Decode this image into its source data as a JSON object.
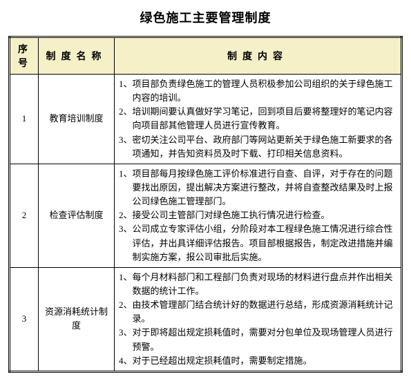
{
  "title": "绿色施工主要管理制度",
  "columns": {
    "num": "序号",
    "name": "制度名称",
    "content": "制度内容"
  },
  "rows": [
    {
      "num": "1",
      "name": "教育培训制度",
      "items": [
        "项目部负责绿色施工的管理人员积极参加公司组织的关于绿色施工内容的培训。",
        "培训期间要认真做好学习笔记，回到项目后要将整理好的笔记内容向项目部其他管理人员进行宣传教育。",
        "密切关注公司平台、政府部门等网站更新关于绿色施工新要求的各项通知，并告知资料员及时下载、打印相关信息资料。"
      ]
    },
    {
      "num": "2",
      "name": "检查评估制度",
      "items": [
        "项目部每月按绿色施工评价标准进行自查、自评，对于存在的问题要找出原因，提出解决方案进行整改，并将自查整改结果及时上报公司绿色施工管理部门。",
        "接受公司主管部门对绿色施工执行情况进行检查。",
        "公司成立专家评估小组，分阶段对本工程绿色施工情况进行综合性评估，并出具详细评估报告。项目部根据报告，制定改进措施并编制实施方案，报公司审批后实施。"
      ]
    },
    {
      "num": "3",
      "name": "资源消耗统计制度",
      "items": [
        "每个月材料部门和工程部门负责对现场的材料进行盘点并作出相关数据的统计工作。",
        "由技术管理部门结合统计好的数据进行总结，形成资源消耗统计记录。",
        "对于即将超出规定损耗值时，需要对分包单位及现场管理人员进行预警。",
        "对于已经超出规定损耗值时，需要制定措施。"
      ]
    }
  ],
  "style": {
    "header_bg": "#f5f0c8",
    "border_color": "#000000",
    "background": "#ffffff",
    "title_fontsize": 18,
    "body_fontsize": 13
  }
}
